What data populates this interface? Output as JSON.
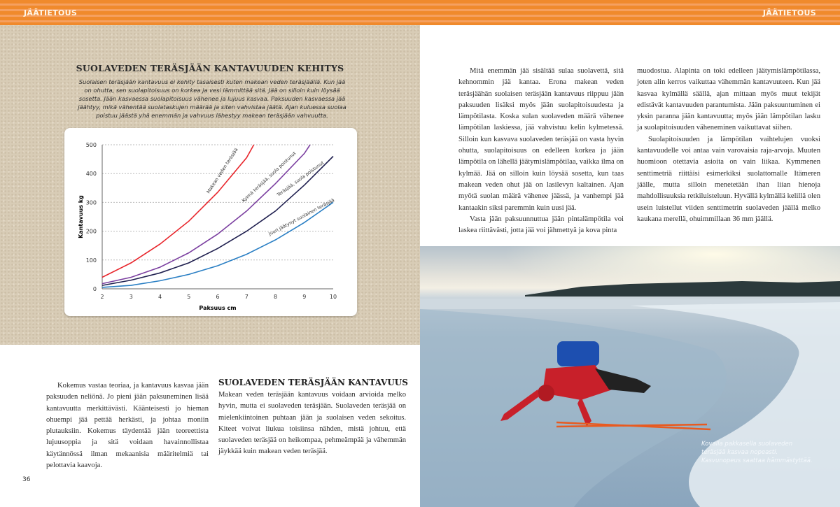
{
  "header": {
    "left": "JÄÄTIETOUS",
    "right": "JÄÄTIETOUS"
  },
  "infobox": {
    "title": "SUOLAVEDEN TERÄSJÄÄN KANTAVUUDEN KEHITYS",
    "text": "Suolaisen teräsjään kantavuus ei kehity tasaisesti kuten makean veden teräsjäällä. Kun jää on ohutta, sen suolapitoisuus on korkea ja vesi lämmittää sitä. Jää on silloin kuin löysää sosetta. Jään kasvaessa suolapitoisuus vähenee ja lujuus kasvaa. Paksuuden kasvaessa jää jäähtyy, mikä vähentää suolataskujen määrää ja siten vahvistaa jäätä. Ajan kuluessa suolaa poistuu jäästä yhä enemmän ja vahvuus lähestyy makean teräsjään vahvuutta."
  },
  "chart_data": {
    "type": "line",
    "xlabel": "Paksuus cm",
    "ylabel": "Kantavuus kg",
    "xlim": [
      2,
      10
    ],
    "ylim": [
      0,
      500
    ],
    "xticks": [
      "2",
      "3",
      "4",
      "5",
      "6",
      "7",
      "8",
      "9",
      "10"
    ],
    "yticks": [
      "0",
      "100",
      "200",
      "300",
      "400",
      "500"
    ],
    "grid": "horizontal dotted",
    "series": [
      {
        "name": "Makean veden teräsjää",
        "color": "#e8252b",
        "x": [
          2,
          3,
          4,
          5,
          6,
          7,
          7.25
        ],
        "y": [
          40,
          90,
          155,
          235,
          335,
          455,
          500
        ]
      },
      {
        "name": "Kylmä teräsjää, suola poistunut",
        "color": "#7b3fa0",
        "x": [
          2,
          3,
          4,
          5,
          6,
          7,
          8,
          9,
          9.2
        ],
        "y": [
          18,
          40,
          75,
          125,
          190,
          270,
          365,
          470,
          500
        ]
      },
      {
        "name": "Teräsjää, suola poistunut",
        "color": "#1f1f4f",
        "x": [
          2,
          3,
          4,
          5,
          6,
          7,
          8,
          9,
          10
        ],
        "y": [
          12,
          30,
          55,
          90,
          140,
          200,
          270,
          360,
          460
        ]
      },
      {
        "name": "Juuri jäätynyt suolainen teräsjää",
        "color": "#2a7fc4",
        "x": [
          2,
          3,
          4,
          5,
          6,
          7,
          8,
          9,
          10
        ],
        "y": [
          5,
          12,
          28,
          50,
          80,
          120,
          170,
          230,
          300
        ]
      }
    ]
  },
  "left_text": "Kokemus vastaa teoriaa, ja kantavuus kasvaa jään paksuuden neliönä. Jo pieni jään paksuneminen lisää kantavuutta merkittävästi. Käänteisesti jo hieman ohuempi jää pettää herkästi, ja johtaa moniin plutauksiin. Kokemus täydentää jään teoreettista lujuusoppia ja sitä voidaan havainnollistaa käytännössä ilman mekaanisia määritelmiä tai pelottavia kaavoja.",
  "section": {
    "title": "SUOLAVEDEN TERÄSJÄÄN KANTAVUUS",
    "text": "Makean veden teräsjään kantavuus voidaan arvioida melko hyvin, mutta ei suolaveden teräsjään. Suolaveden teräsjää on mielenkiintoinen puhtaan jään ja suolaisen veden sekoitus. Kiteet voivat liukua toisiinsa nähden, mistä johtuu, että suolaveden teräsjää on heikompaa, pehmeämpää ja vähemmän jäykkää kuin makean veden teräsjää."
  },
  "page_number": "36",
  "right_col1": [
    "Mitä enemmän jää sisältää sulaa suolavettä, sitä kehnommin jää kantaa. Erona makean veden teräsjäähän suolaisen teräsjään kantavuus riippuu jään paksuuden lisäksi myös jään suolapitoisuudesta ja lämpötilasta. Koska sulan suolaveden määrä vähenee lämpötilan laskiessa, jää vahvistuu kelin kylmetessä. Silloin kun kasvava suolaveden teräsjää on vasta hyvin ohutta, suolapitoisuus on edelleen korkea ja jään lämpötila on lähellä jäätymislämpötilaa, vaikka ilma on kylmää. Jää on silloin kuin löysää sosetta, kun taas makean veden ohut jää on lasilevyn kaltainen. Ajan myötä suolan määrä vähenee jäässä, ja vanhempi jää kantaakin siksi paremmin kuin uusi jää.",
    "Vasta jään paksuunnuttua jään pintalämpötila voi laskea riittävästi, jotta jää voi jähmettyä ja kova pinta"
  ],
  "right_col2": [
    "muodostua. Alapinta on toki edelleen jäätymislämpötilassa, joten alin kerros vaikuttaa vähemmän kantavuuteen. Kun jää kasvaa kylmällä säällä, ajan mittaan myös muut tekijät edistävät kantavuuden parantumista. Jään paksuuntuminen ei yksin paranna jään kantavuutta; myös jään lämpötilan lasku ja suolapitoisuuden väheneminen vaikuttavat siihen.",
    "Suolapitoisuuden ja lämpötilan vaihtelujen vuoksi kantavuudelle voi antaa vain varovaisia raja-arvoja. Muuten huomioon otettavia asioita on vain liikaa. Kymmenen senttimetriä riittäisi esimerkiksi suolattomalle Itämeren jäälle, mutta silloin menetetään ihan liian hienoja mahdollisuuksia retkiluisteluun. Hyvällä kylmällä kelillä olen usein luistellut viiden senttimetrin suolaveden jäällä melko kaukana merellä, ohuimmillaan 36 mm jäällä."
  ],
  "photo": {
    "caption": [
      "Kovalla pakkasella suolaveden",
      "teräsjää kasvaa nopeasti.",
      "Kasvunopeus saattaa hämmästyttää."
    ]
  }
}
